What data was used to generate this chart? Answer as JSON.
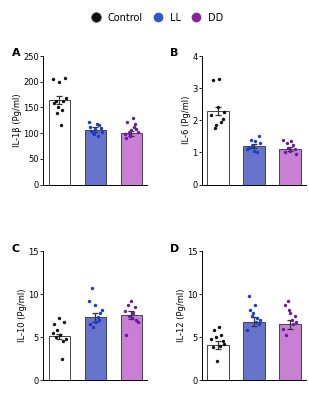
{
  "panels": [
    {
      "label": "A",
      "ylabel": "IL-1β (Pg/ml)",
      "ylim": [
        0,
        250
      ],
      "yticks": [
        0,
        50,
        100,
        150,
        200,
        250
      ],
      "bar_means": [
        165,
        107,
        100
      ],
      "bar_sems": [
        8,
        5,
        5
      ],
      "bar_colors": [
        "white",
        "#6674cc",
        "#c87fd4"
      ],
      "scatter_points": [
        [
          200,
          205,
          207,
          168,
          162,
          158,
          162,
          150,
          145,
          140,
          115
        ],
        [
          122,
          118,
          115,
          112,
          110,
          108,
          105,
          103,
          100,
          98,
          95
        ],
        [
          130,
          122,
          118,
          112,
          108,
          106,
          102,
          100,
          98,
          95,
          90
        ]
      ],
      "scatter_color": [
        "#111111",
        "#1a3acc",
        "#6a1a9c"
      ]
    },
    {
      "label": "B",
      "ylabel": "IL-6 (Pg/ml)",
      "ylim": [
        0,
        4
      ],
      "yticks": [
        0,
        1,
        2,
        3,
        4
      ],
      "bar_means": [
        2.3,
        1.2,
        1.1
      ],
      "bar_sems": [
        0.12,
        0.05,
        0.06
      ],
      "bar_colors": [
        "white",
        "#6674cc",
        "#c87fd4"
      ],
      "scatter_points": [
        [
          3.25,
          3.3,
          2.4,
          2.25,
          2.15,
          2.05,
          1.95,
          1.85,
          1.75
        ],
        [
          1.5,
          1.4,
          1.35,
          1.28,
          1.2,
          1.15,
          1.1,
          1.05,
          1.0
        ],
        [
          1.4,
          1.35,
          1.3,
          1.22,
          1.15,
          1.1,
          1.05,
          1.0,
          0.95
        ]
      ],
      "scatter_color": [
        "#111111",
        "#1a3acc",
        "#6a1a9c"
      ]
    },
    {
      "label": "C",
      "ylabel": "IL-10 (Pg/ml)",
      "ylim": [
        0,
        15
      ],
      "yticks": [
        0,
        5,
        10,
        15
      ],
      "bar_means": [
        5.1,
        7.3,
        7.6
      ],
      "bar_sems": [
        0.3,
        0.55,
        0.45
      ],
      "bar_colors": [
        "white",
        "#6674cc",
        "#c87fd4"
      ],
      "scatter_points": [
        [
          7.2,
          6.8,
          6.5,
          5.8,
          5.5,
          5.2,
          5.0,
          4.8,
          4.5,
          2.5
        ],
        [
          10.7,
          9.2,
          8.8,
          8.2,
          7.8,
          7.4,
          7.0,
          6.8,
          6.5,
          6.2
        ],
        [
          9.2,
          8.8,
          8.5,
          8.0,
          7.8,
          7.5,
          7.2,
          7.0,
          6.8,
          5.2
        ]
      ],
      "scatter_color": [
        "#111111",
        "#1a3acc",
        "#6a1a9c"
      ]
    },
    {
      "label": "D",
      "ylabel": "IL-12 (Pg/ml)",
      "ylim": [
        0,
        15
      ],
      "yticks": [
        0,
        5,
        10,
        15
      ],
      "bar_means": [
        4.1,
        6.8,
        6.5
      ],
      "bar_sems": [
        0.45,
        0.55,
        0.55
      ],
      "bar_colors": [
        "white",
        "#6674cc",
        "#c87fd4"
      ],
      "scatter_points": [
        [
          6.2,
          5.8,
          5.2,
          5.0,
          4.8,
          4.5,
          4.2,
          4.0,
          3.8,
          2.2
        ],
        [
          9.8,
          8.8,
          8.2,
          7.8,
          7.5,
          7.2,
          7.0,
          6.8,
          6.5,
          5.8
        ],
        [
          9.2,
          8.8,
          8.2,
          7.8,
          7.5,
          7.0,
          6.8,
          6.5,
          6.0,
          5.2
        ]
      ],
      "scatter_color": [
        "#111111",
        "#1a3acc",
        "#6a1a9c"
      ]
    }
  ],
  "legend_labels": [
    "Control",
    "LL",
    "DD"
  ],
  "legend_colors": [
    "#111111",
    "#3355cc",
    "#882299"
  ],
  "legend_bar_colors": [
    "white",
    "#6674cc",
    "#c87fd4"
  ],
  "background_color": "#ffffff"
}
